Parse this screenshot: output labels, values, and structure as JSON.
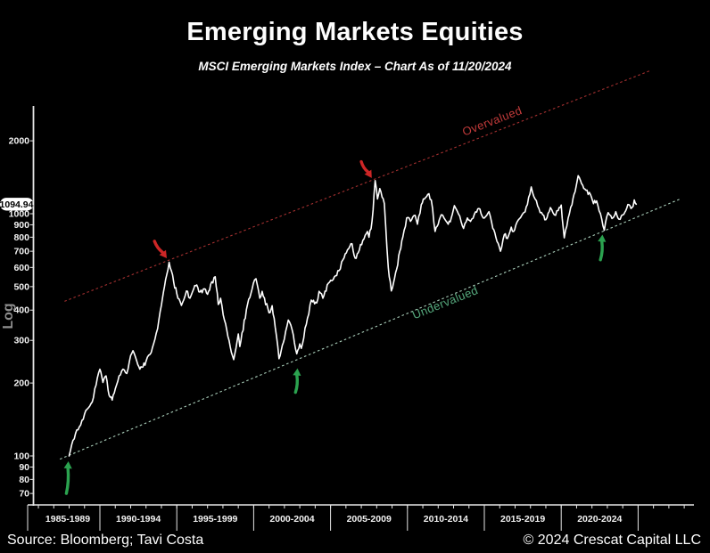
{
  "header": {
    "title": "Emerging Markets Equities",
    "subtitle": "MSCI Emerging Markets Index – Chart As of 11/20/2024"
  },
  "footer": {
    "source": "Source: Bloomberg; Tavi Costa",
    "copyright": "© 2024 Crescat Capital LLC"
  },
  "y_axis": {
    "scale_label": "Log",
    "ticks": [
      2000,
      1000,
      900,
      800,
      700,
      600,
      500,
      400,
      300,
      200,
      100,
      90,
      80,
      70
    ]
  },
  "x_axis": {
    "period_labels": [
      "1985-1989",
      "1990-1994",
      "1995-1999",
      "2000-2004",
      "2005-2009",
      "2010-2014",
      "2015-2019",
      "2020-2024"
    ],
    "period_starts": [
      1985,
      1990,
      1995,
      2000,
      2005,
      2010,
      2015,
      2020
    ]
  },
  "current_price": {
    "label": "1094.94",
    "value": 1094.94
  },
  "colors": {
    "background": "#000000",
    "price_line": "#ffffff",
    "overvalued_line": "#a43030",
    "overvalued_text": "#c03a3a",
    "undervalued_line": "#a9cdb9",
    "undervalued_text": "#55a87c",
    "arrow_up": "#2ba24f",
    "arrow_down": "#cd2626",
    "axis": "#e6e6e6",
    "tick_label": "#f2f2f2",
    "log_label": "#8f8f8f",
    "pill_bg": "#ffffff",
    "pill_text": "#000000"
  },
  "chart_data": {
    "type": "line",
    "title": "Emerging Markets Equities",
    "subtitle": "MSCI Emerging Markets Index – Chart As of 11/20/2024",
    "xlabel": "",
    "ylabel": "Log",
    "y_scale": "log",
    "ylim": [
      62,
      2800
    ],
    "xlim": [
      1983.5,
      2029.6
    ],
    "grid": false,
    "legend_position": "none",
    "series": [
      {
        "name": "MSCI Emerging Markets Index",
        "last_value": 1094.94,
        "points": [
          [
            1988.0,
            100
          ],
          [
            1988.25,
            116
          ],
          [
            1988.5,
            128
          ],
          [
            1988.75,
            134
          ],
          [
            1989.0,
            149
          ],
          [
            1989.25,
            158
          ],
          [
            1989.5,
            167
          ],
          [
            1989.75,
            196
          ],
          [
            1990.0,
            228
          ],
          [
            1990.2,
            201
          ],
          [
            1990.4,
            214
          ],
          [
            1990.6,
            178
          ],
          [
            1990.8,
            170
          ],
          [
            1991.0,
            189
          ],
          [
            1991.25,
            214
          ],
          [
            1991.5,
            228
          ],
          [
            1991.75,
            219
          ],
          [
            1992.0,
            260
          ],
          [
            1992.15,
            272
          ],
          [
            1992.4,
            246
          ],
          [
            1992.6,
            228
          ],
          [
            1992.8,
            233
          ],
          [
            1993.0,
            246
          ],
          [
            1993.25,
            262
          ],
          [
            1993.5,
            291
          ],
          [
            1993.75,
            335
          ],
          [
            1994.0,
            420
          ],
          [
            1994.2,
            500
          ],
          [
            1994.5,
            630
          ],
          [
            1994.65,
            580
          ],
          [
            1994.8,
            520
          ],
          [
            1995.0,
            468
          ],
          [
            1995.3,
            418
          ],
          [
            1995.55,
            460
          ],
          [
            1995.7,
            478
          ],
          [
            1995.85,
            448
          ],
          [
            1996.1,
            490
          ],
          [
            1996.3,
            508
          ],
          [
            1996.5,
            475
          ],
          [
            1996.8,
            490
          ],
          [
            1997.0,
            465
          ],
          [
            1997.2,
            510
          ],
          [
            1997.5,
            549
          ],
          [
            1997.7,
            422
          ],
          [
            1997.85,
            448
          ],
          [
            1998.1,
            364
          ],
          [
            1998.4,
            300
          ],
          [
            1998.7,
            250
          ],
          [
            1999.0,
            319
          ],
          [
            1999.1,
            283
          ],
          [
            1999.6,
            422
          ],
          [
            1999.9,
            490
          ],
          [
            2000.15,
            539
          ],
          [
            2000.4,
            448
          ],
          [
            2000.55,
            478
          ],
          [
            2001.0,
            390
          ],
          [
            2001.2,
            417
          ],
          [
            2001.4,
            341
          ],
          [
            2001.65,
            252
          ],
          [
            2002.0,
            305
          ],
          [
            2002.25,
            364
          ],
          [
            2002.5,
            332
          ],
          [
            2002.8,
            264
          ],
          [
            2003.0,
            290
          ],
          [
            2003.1,
            278
          ],
          [
            2003.5,
            370
          ],
          [
            2003.75,
            440
          ],
          [
            2004.1,
            428
          ],
          [
            2004.25,
            478
          ],
          [
            2004.5,
            448
          ],
          [
            2004.85,
            516
          ],
          [
            2005.25,
            549
          ],
          [
            2005.55,
            582
          ],
          [
            2005.8,
            645
          ],
          [
            2006.1,
            710
          ],
          [
            2006.4,
            751
          ],
          [
            2006.6,
            655
          ],
          [
            2006.8,
            690
          ],
          [
            2007.1,
            777
          ],
          [
            2007.4,
            845
          ],
          [
            2007.5,
            800
          ],
          [
            2007.7,
            932
          ],
          [
            2007.9,
            1370
          ],
          [
            2008.05,
            1150
          ],
          [
            2008.2,
            1270
          ],
          [
            2008.5,
            1100
          ],
          [
            2008.75,
            600
          ],
          [
            2008.95,
            480
          ],
          [
            2009.1,
            520
          ],
          [
            2009.3,
            590
          ],
          [
            2009.5,
            700
          ],
          [
            2009.7,
            800
          ],
          [
            2009.95,
            960
          ],
          [
            2010.2,
            930
          ],
          [
            2010.5,
            985
          ],
          [
            2010.65,
            905
          ],
          [
            2010.9,
            1090
          ],
          [
            2011.1,
            1150
          ],
          [
            2011.4,
            1210
          ],
          [
            2011.55,
            1140
          ],
          [
            2011.8,
            845
          ],
          [
            2012.0,
            905
          ],
          [
            2012.2,
            990
          ],
          [
            2012.45,
            945
          ],
          [
            2012.65,
            905
          ],
          [
            2012.85,
            960
          ],
          [
            2013.05,
            1080
          ],
          [
            2013.4,
            980
          ],
          [
            2013.65,
            870
          ],
          [
            2013.9,
            960
          ],
          [
            2014.1,
            930
          ],
          [
            2014.35,
            995
          ],
          [
            2014.65,
            1050
          ],
          [
            2014.85,
            980
          ],
          [
            2015.0,
            960
          ],
          [
            2015.3,
            1020
          ],
          [
            2015.55,
            870
          ],
          [
            2015.75,
            800
          ],
          [
            2016.05,
            700
          ],
          [
            2016.3,
            820
          ],
          [
            2016.5,
            790
          ],
          [
            2016.75,
            880
          ],
          [
            2016.9,
            845
          ],
          [
            2017.2,
            940
          ],
          [
            2017.5,
            1000
          ],
          [
            2017.8,
            1090
          ],
          [
            2018.05,
            1290
          ],
          [
            2018.3,
            1150
          ],
          [
            2018.55,
            1050
          ],
          [
            2018.8,
            990
          ],
          [
            2019.0,
            945
          ],
          [
            2019.3,
            1060
          ],
          [
            2019.55,
            990
          ],
          [
            2019.8,
            1030
          ],
          [
            2020.0,
            1086
          ],
          [
            2020.2,
            795
          ],
          [
            2020.45,
            960
          ],
          [
            2020.7,
            1090
          ],
          [
            2020.9,
            1230
          ],
          [
            2021.1,
            1435
          ],
          [
            2021.4,
            1310
          ],
          [
            2021.6,
            1250
          ],
          [
            2021.9,
            1200
          ],
          [
            2022.1,
            1100
          ],
          [
            2022.3,
            1130
          ],
          [
            2022.55,
            1000
          ],
          [
            2022.8,
            855
          ],
          [
            2023.05,
            1010
          ],
          [
            2023.3,
            955
          ],
          [
            2023.55,
            1020
          ],
          [
            2023.75,
            950
          ],
          [
            2024.0,
            990
          ],
          [
            2024.2,
            1030
          ],
          [
            2024.4,
            1090
          ],
          [
            2024.6,
            1060
          ],
          [
            2024.75,
            1140
          ],
          [
            2024.88,
            1094.94
          ]
        ]
      }
    ],
    "channel_lines": [
      {
        "name": "overvalued",
        "label": "Overvalued",
        "style": "dashed",
        "x": [
          1987.7,
          2025.8
        ],
        "v": [
          435,
          3900
        ],
        "label_pos": {
          "year": 2015.6,
          "v": 2330,
          "rotate": -21
        }
      },
      {
        "name": "undervalued",
        "label": "Undervalued",
        "style": "dashed",
        "x": [
          1987.4,
          2027.7
        ],
        "v": [
          97,
          1148
        ],
        "label_pos": {
          "year": 2012.55,
          "v": 415,
          "rotate": -22
        }
      }
    ],
    "arrows": [
      {
        "kind": "up",
        "year_tail": 1987.82,
        "v_tail": 70,
        "year_head": 1987.95,
        "v_head": 95
      },
      {
        "kind": "up",
        "year_tail": 2002.72,
        "v_tail": 183,
        "year_head": 2002.85,
        "v_head": 230
      },
      {
        "kind": "up",
        "year_tail": 2022.55,
        "v_tail": 645,
        "year_head": 2022.68,
        "v_head": 820
      },
      {
        "kind": "down",
        "year_tail": 1993.55,
        "v_tail": 770,
        "year_head": 1994.35,
        "v_head": 655
      },
      {
        "kind": "down",
        "year_tail": 2007.0,
        "v_tail": 1640,
        "year_head": 2007.68,
        "v_head": 1405
      }
    ],
    "jitter": {
      "seed": 20241120,
      "amp_log10": 0.011,
      "step_years": 0.075
    }
  }
}
